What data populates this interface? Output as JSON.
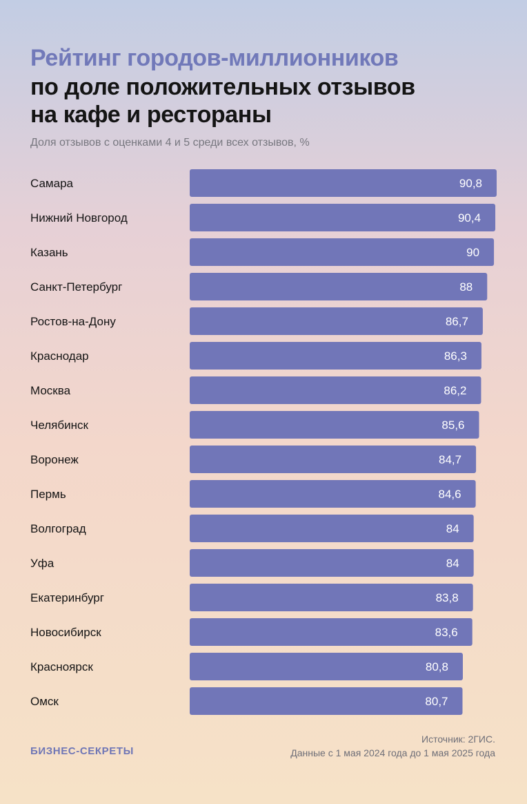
{
  "header": {
    "title_line1": "Рейтинг городов-миллионников",
    "title_line2": "по доле положительных отзывов",
    "title_line3": "на кафе и рестораны",
    "subtitle": "Доля отзывов с оценками 4 и 5 среди всех отзывов, %"
  },
  "chart_data": {
    "type": "bar",
    "orientation": "horizontal",
    "title": "Рейтинг городов-миллионников по доле положительных отзывов на кафе и рестораны",
    "subtitle": "Доля отзывов с оценками 4 и 5 среди всех отзывов, %",
    "xlabel": "",
    "ylabel": "",
    "xlim": [
      0,
      90.8
    ],
    "grid": false,
    "bar_color": "#7176b8",
    "categories": [
      "Самара",
      "Нижний Новгород",
      "Казань",
      "Санкт-Петербург",
      "Ростов-на-Дону",
      "Краснодар",
      "Москва",
      "Челябинск",
      "Воронеж",
      "Пермь",
      "Волгоград",
      "Уфа",
      "Екатеринбург",
      "Новосибирск",
      "Красноярск",
      "Омск"
    ],
    "values": [
      90.8,
      90.4,
      90,
      88,
      86.7,
      86.3,
      86.2,
      85.6,
      84.7,
      84.6,
      84,
      84,
      83.8,
      83.6,
      80.8,
      80.7
    ],
    "value_labels": [
      "90,8",
      "90,4",
      "90",
      "88",
      "86,7",
      "86,3",
      "86,2",
      "85,6",
      "84,7",
      "84,6",
      "84",
      "84",
      "83,8",
      "83,6",
      "80,8",
      "80,7"
    ]
  },
  "footer": {
    "brand": "БИЗНЕС-СЕКРЕТЫ",
    "source": "Источник: 2ГИС.",
    "period": "Данные с 1 мая 2024 года до 1 мая 2025 года"
  },
  "colors": {
    "accent": "#7176b8",
    "title_accent": "#7179b9",
    "text": "#141414",
    "muted": "#77777f"
  }
}
